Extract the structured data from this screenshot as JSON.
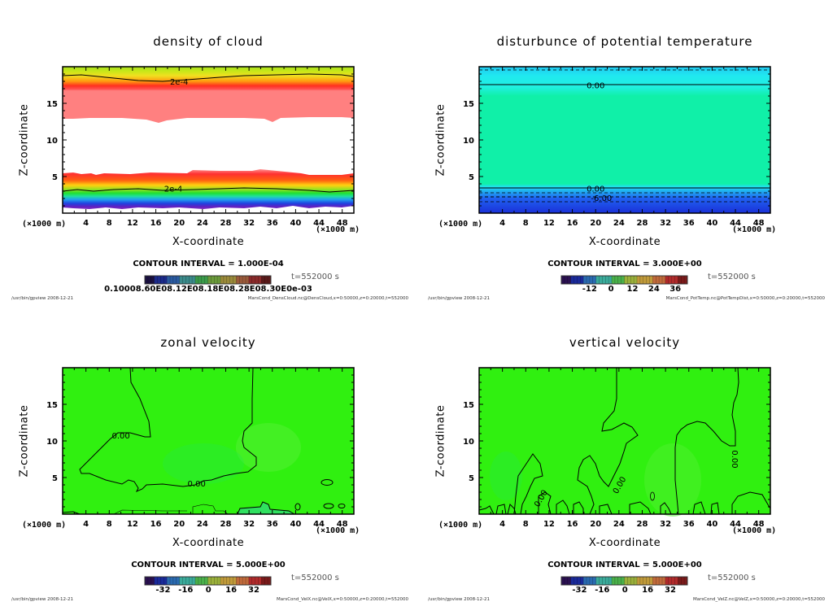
{
  "common": {
    "ylabel": "Z-coordinate",
    "xlabel": "X-coordinate",
    "unit_label": "(×1000 m)",
    "time_label": "t=552000 s",
    "footer_left": "/usr/bin/gpview   2008-12-21",
    "x_ticks": [
      4,
      8,
      12,
      16,
      20,
      24,
      28,
      32,
      36,
      40,
      44,
      48
    ],
    "y_ticks": [
      5,
      10,
      15
    ],
    "xlim": [
      0,
      50
    ],
    "ylim": [
      0,
      20
    ]
  },
  "chart_data": [
    {
      "type": "heatmap",
      "title": "density of cloud",
      "xlabel": "X-coordinate",
      "ylabel": "Z-coordinate",
      "xlim": [
        0,
        50
      ],
      "ylim": [
        0,
        20
      ],
      "contour_interval": "CONTOUR INTERVAL = 1.000E-04",
      "contour_labels": [
        {
          "text": "2e-4",
          "x": 20,
          "z": 18
        },
        {
          "text": "2e-4",
          "x": 19,
          "z": 3.4
        }
      ],
      "colorbar_tick_text": "0.10008.60E08.12E08.18E08.28E08.30E0e-03",
      "colorbar_colors": [
        "#1a1040",
        "#1b2a8a",
        "#2a5aa0",
        "#3a8a8a",
        "#3a9a4a",
        "#6a9a3a",
        "#9a8a3a",
        "#9a5a3a",
        "#8a2a2a",
        "#5a1a1a"
      ],
      "time_label": "t=552000 s",
      "footer_right": "MarsCond_DensCloud.nc@DensCloud,x=0:50000,z=0:20000,t=552000"
    },
    {
      "type": "heatmap",
      "title": "disturbunce of potential temperature",
      "xlabel": "X-coordinate",
      "ylabel": "Z-coordinate",
      "xlim": [
        0,
        50
      ],
      "ylim": [
        0,
        20
      ],
      "contour_interval": "CONTOUR INTERVAL = 3.000E+00",
      "contour_labels": [
        {
          "text": "0.00",
          "x": 20,
          "z": 17.5
        },
        {
          "text": "0.00",
          "x": 20,
          "z": 3.4
        },
        {
          "text": "-6.00",
          "x": 21,
          "z": 2.1
        }
      ],
      "colorbar_ticks": [
        "-12",
        "0",
        "12",
        "24",
        "36"
      ],
      "colorbar_colors": [
        "#2a1050",
        "#1a2a9a",
        "#2a6ab0",
        "#3aaa9a",
        "#4ab04a",
        "#9ab03a",
        "#c09a3a",
        "#c06a3a",
        "#b02a2a",
        "#7a1a1a"
      ],
      "time_label": "t=552000 s",
      "footer_right": "MarsCond_PotTemp.nc@PotTempDist,x=0:50000,z=0:20000,t=552000"
    },
    {
      "type": "heatmap",
      "title": "zonal velocity",
      "xlabel": "X-coordinate",
      "ylabel": "Z-coordinate",
      "xlim": [
        0,
        50
      ],
      "ylim": [
        0,
        20
      ],
      "contour_interval": "CONTOUR INTERVAL = 5.000E+00",
      "contour_labels": [
        {
          "text": "0.00",
          "x": 10,
          "z": 10.8
        },
        {
          "text": "0.00",
          "x": 23,
          "z": 4.2
        }
      ],
      "colorbar_ticks": [
        "-32",
        "-16",
        "0",
        "16",
        "32"
      ],
      "colorbar_colors": [
        "#2a1050",
        "#1a2a9a",
        "#2a6ab0",
        "#3aaa9a",
        "#4ab04a",
        "#9ab03a",
        "#c09a3a",
        "#c06a3a",
        "#b02a2a",
        "#7a1a1a"
      ],
      "time_label": "t=552000 s",
      "footer_right": "MarsCond_VelX.nc@VelX,x=0:50000,z=0:20000,t=552000"
    },
    {
      "type": "heatmap",
      "title": "vertical velocity",
      "xlabel": "X-coordinate",
      "ylabel": "Z-coordinate",
      "xlim": [
        0,
        50
      ],
      "ylim": [
        0,
        20
      ],
      "contour_interval": "CONTOUR INTERVAL = 5.000E+00",
      "contour_labels": [
        {
          "text": "0.00",
          "x": 10.5,
          "z": 2.2
        },
        {
          "text": "0.00",
          "x": 24,
          "z": 4
        },
        {
          "text": "0.00",
          "x": 44,
          "z": 7.5
        }
      ],
      "colorbar_ticks": [
        "-32",
        "-16",
        "0",
        "16",
        "32"
      ],
      "colorbar_colors": [
        "#2a1050",
        "#1a2a9a",
        "#2a6ab0",
        "#3aaa9a",
        "#4ab04a",
        "#9ab03a",
        "#c09a3a",
        "#c06a3a",
        "#b02a2a",
        "#7a1a1a"
      ],
      "time_label": "t=552000 s",
      "footer_right": "MarsCond_VelZ.nc@VelZ,x=0:50000,z=0:20000,t=552000"
    }
  ]
}
